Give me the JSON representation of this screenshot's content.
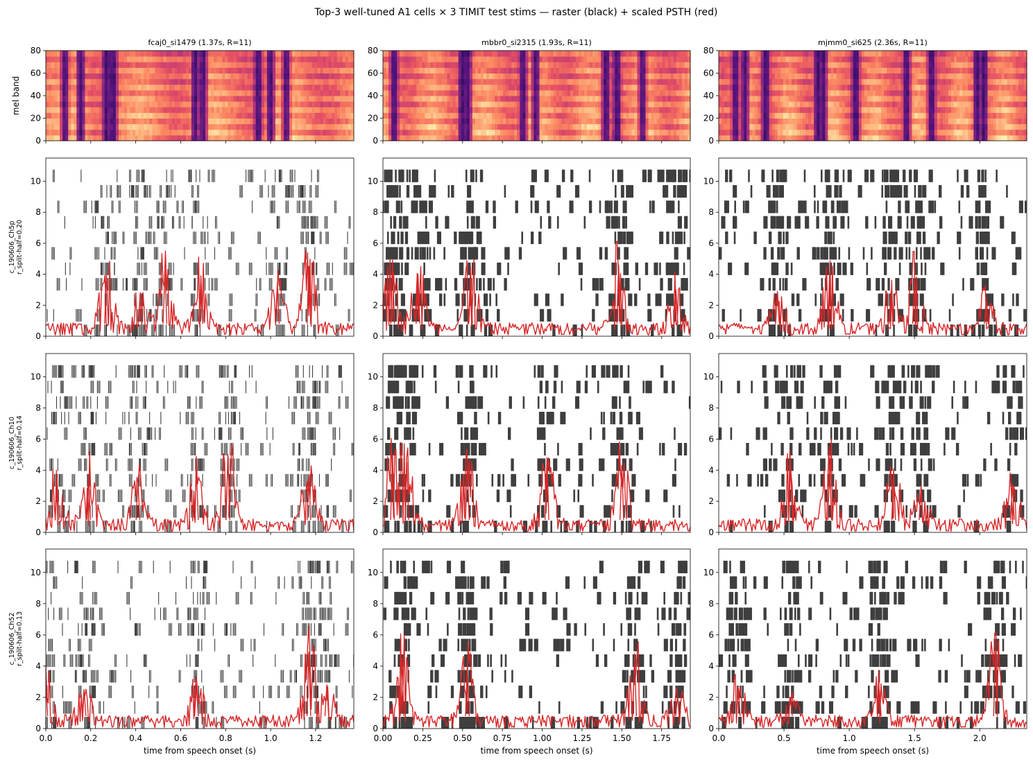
{
  "figure": {
    "title": "Top-3 well-tuned A1 cells × 3 TIMIT test stims — raster (black) + scaled PSTH (red)"
  },
  "colors": {
    "raster": "#3f3f3f",
    "psth": "#d62728",
    "axes": "#000000"
  },
  "chart_data": {
    "type": "raster+psth",
    "n_trials": 11,
    "spectrogram": {
      "ylabel": "mel band",
      "ylim": [
        0,
        80
      ],
      "yticks": [
        0,
        20,
        40,
        60,
        80
      ],
      "colormap": "magma"
    },
    "raster_ylim": [
      0,
      11.5
    ],
    "raster_yticks": [
      0,
      2,
      4,
      6,
      8,
      10
    ],
    "xlabel": "time from speech onset (s)",
    "stimuli": [
      {
        "name": "fcaj0_si1479",
        "title": "fcaj0_si1479  (1.37s, R=11)",
        "duration": 1.37,
        "repeats": 11,
        "xticks": [
          0.0,
          0.2,
          0.4,
          0.6,
          0.8,
          1.0,
          1.2
        ],
        "xtick_labels": [
          "0.0",
          "0.2",
          "0.4",
          "0.6",
          "0.8",
          "1.0",
          "1.2"
        ],
        "energy_dips": [
          0.085,
          0.155,
          0.27,
          0.3,
          0.665,
          0.7,
          0.945,
          1.0,
          1.07
        ]
      },
      {
        "name": "mbbr0_si2315",
        "title": "mbbr0_si2315  (1.93s, R=11)",
        "duration": 1.93,
        "repeats": 11,
        "xticks": [
          0.0,
          0.25,
          0.5,
          0.75,
          1.0,
          1.25,
          1.5,
          1.75
        ],
        "xtick_labels": [
          "0.00",
          "0.25",
          "0.50",
          "0.75",
          "1.00",
          "1.25",
          "1.50",
          "1.75"
        ],
        "energy_dips": [
          0.07,
          0.5,
          0.53,
          0.88,
          0.96,
          1.4,
          1.47,
          1.63
        ]
      },
      {
        "name": "mjmm0_si625",
        "title": "mjmm0_si625  (2.36s, R=11)",
        "duration": 2.36,
        "repeats": 11,
        "xticks": [
          0.0,
          0.5,
          1.0,
          1.5,
          2.0
        ],
        "xtick_labels": [
          "0.0",
          "0.5",
          "1.0",
          "1.5",
          "2.0"
        ],
        "energy_dips": [
          0.13,
          0.2,
          0.36,
          0.76,
          0.8,
          1.05,
          1.44,
          1.63,
          1.98,
          2.03
        ]
      }
    ],
    "cells": [
      {
        "name": "c_190606_Ch5p",
        "label_line1": "c_190606_Ch5p",
        "label_line2": "r_split-half=0.20",
        "split_half_r": 0.2,
        "psth_peaks": [
          [
            [
              0.27,
              4.0
            ],
            [
              0.42,
              2.8
            ],
            [
              0.53,
              4.3
            ],
            [
              0.69,
              3.9
            ],
            [
              1.17,
              4.5
            ],
            [
              1.03,
              3.5
            ]
          ],
          [
            [
              0.06,
              4.9
            ],
            [
              0.22,
              4.0
            ],
            [
              0.55,
              4.5
            ],
            [
              1.48,
              4.6
            ],
            [
              1.84,
              3.0
            ]
          ],
          [
            [
              0.45,
              2.9
            ],
            [
              0.85,
              4.1
            ],
            [
              1.32,
              2.9
            ],
            [
              1.5,
              3.8
            ],
            [
              2.05,
              2.5
            ]
          ]
        ]
      },
      {
        "name": "c_190606_Ch10",
        "label_line1": "c_190606_Ch10",
        "label_line2": "r_split-half=0.14",
        "split_half_r": 0.14,
        "psth_peaks": [
          [
            [
              0.05,
              3.5
            ],
            [
              0.19,
              3.6
            ],
            [
              0.41,
              3.2
            ],
            [
              0.67,
              4.0
            ],
            [
              0.81,
              5.0
            ],
            [
              1.17,
              3.7
            ]
          ],
          [
            [
              0.06,
              5.0
            ],
            [
              0.15,
              4.5
            ],
            [
              0.53,
              4.4
            ],
            [
              1.03,
              4.8
            ],
            [
              1.5,
              4.3
            ]
          ],
          [
            [
              0.55,
              4.4
            ],
            [
              0.85,
              4.3
            ],
            [
              1.34,
              4.1
            ],
            [
              1.55,
              3.0
            ],
            [
              2.25,
              3.1
            ]
          ]
        ]
      },
      {
        "name": "c_190606_Ch52",
        "label_line1": "c_190606_Ch52",
        "label_line2": "r_split-half=0.13",
        "split_half_r": 0.13,
        "psth_peaks": [
          [
            [
              0.0,
              2.9
            ],
            [
              0.17,
              2.5
            ],
            [
              0.67,
              2.8
            ],
            [
              1.17,
              4.9
            ],
            [
              1.25,
              2.8
            ]
          ],
          [
            [
              0.12,
              4.5
            ],
            [
              0.53,
              4.0
            ],
            [
              1.58,
              4.8
            ],
            [
              1.85,
              2.1
            ]
          ],
          [
            [
              0.15,
              2.6
            ],
            [
              0.55,
              2.0
            ],
            [
              1.23,
              2.5
            ],
            [
              2.12,
              4.9
            ]
          ]
        ]
      }
    ]
  }
}
